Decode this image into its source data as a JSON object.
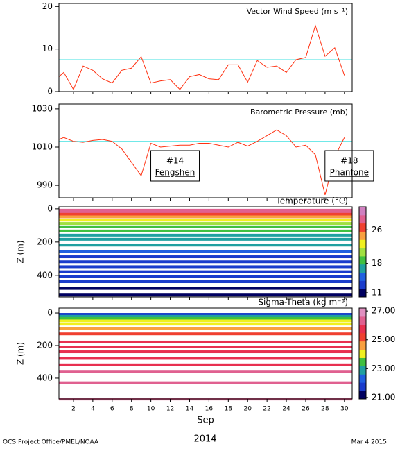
{
  "chart_data": [
    {
      "type": "line",
      "title": "Vector Wind Speed (m s⁻¹)",
      "x": [
        0.5,
        1,
        2,
        3,
        4,
        5,
        6,
        7,
        8,
        9,
        10,
        11,
        12,
        13,
        14,
        15,
        16,
        17,
        18,
        19,
        20,
        21,
        22,
        23,
        24,
        25,
        26,
        27,
        28,
        29,
        30
      ],
      "series": [
        {
          "color": "#ff3010",
          "values": [
            3.5,
            4.5,
            0.5,
            6,
            5,
            3,
            2,
            5,
            5.5,
            8.2,
            2,
            2.5,
            2.8,
            0.5,
            3.5,
            4,
            3,
            2.8,
            6.3,
            6.3,
            2.2,
            7.3,
            5.7,
            6,
            4.5,
            7.5,
            8,
            15.5,
            8.3,
            10.3,
            3.8
          ]
        }
      ],
      "reference_line": {
        "value": 7.5,
        "color": "#40e0e0"
      },
      "xlim": [
        0.5,
        30.8
      ],
      "xticks": [
        2,
        4,
        6,
        8,
        10,
        12,
        14,
        16,
        18,
        20,
        22,
        24,
        26,
        28,
        30
      ],
      "ylim": [
        0,
        20.7
      ],
      "yticks": [
        0,
        10,
        20
      ]
    },
    {
      "type": "line",
      "title": "Barometric Pressure (mb)",
      "x": [
        0.5,
        1,
        2,
        3,
        4,
        5,
        6,
        7,
        8,
        9,
        10,
        11,
        12,
        13,
        14,
        15,
        16,
        17,
        18,
        19,
        20,
        21,
        22,
        23,
        24,
        25,
        26,
        27,
        28,
        29,
        30
      ],
      "series": [
        {
          "color": "#ff3010",
          "values": [
            1014,
            1015,
            1013,
            1012.5,
            1013.5,
            1014,
            1013,
            1009,
            1002,
            995,
            1012,
            1010,
            1010.5,
            1011,
            1011,
            1012,
            1012,
            1011,
            1010,
            1012.5,
            1010.5,
            1013,
            1016,
            1019,
            1016,
            1010,
            1011,
            1006,
            985,
            1005,
            1015
          ]
        }
      ],
      "reference_line": {
        "value": 1013,
        "color": "#40e0e0"
      },
      "annotations": [
        {
          "line1": "#14",
          "line2": "Fengshen",
          "x": 12.5
        },
        {
          "line1": "#18",
          "line2": "Phanfone",
          "x": 30.5
        }
      ],
      "xlim": [
        0.5,
        30.8
      ],
      "xticks": [
        2,
        4,
        6,
        8,
        10,
        12,
        14,
        16,
        18,
        20,
        22,
        24,
        26,
        28,
        30
      ],
      "ylim": [
        983.5,
        1032.5
      ],
      "yticks": [
        990,
        1010,
        1030
      ]
    },
    {
      "type": "heatmap",
      "title": "Temperature (°C)",
      "ylabel": "Z (m)",
      "z_levels": [
        0,
        12,
        25,
        40,
        60,
        80,
        100,
        125,
        150,
        175,
        210,
        250,
        280,
        310,
        340,
        370,
        400,
        430,
        470,
        510
      ],
      "values": [
        29,
        28,
        26,
        25,
        22,
        20,
        19,
        18,
        17,
        16,
        16,
        14,
        13.5,
        13,
        13,
        12.5,
        12,
        12,
        11.5,
        11
      ],
      "xlim": [
        0.5,
        30.8
      ],
      "xticks": [
        2,
        4,
        6,
        8,
        10,
        12,
        14,
        16,
        18,
        20,
        22,
        24,
        26,
        28,
        30
      ],
      "ylim": [
        530,
        -12
      ],
      "yticks": [
        0,
        200,
        400
      ],
      "colorbar": {
        "lim": [
          10,
          31.5
        ],
        "ticks": [
          11,
          18,
          26
        ],
        "colors": [
          "#000060",
          "#1a3ccc",
          "#2060e0",
          "#20a0a0",
          "#40c040",
          "#a0e040",
          "#f0f020",
          "#f8a040",
          "#f04030",
          "#e06090",
          "#d080c0"
        ]
      }
    },
    {
      "type": "heatmap",
      "title": "Sigma-Theta (kg m⁻³)",
      "ylabel": "Z (m)",
      "xlabel": "Sep",
      "z_levels": [
        0,
        12,
        25,
        40,
        60,
        85,
        120,
        170,
        200,
        230,
        270,
        310,
        350,
        420,
        520
      ],
      "values": [
        21.8,
        22.8,
        23.3,
        23.8,
        24.2,
        24.5,
        25.1,
        25.6,
        25.7,
        25.8,
        25.9,
        26.0,
        26.1,
        26.3,
        26.6
      ],
      "xlim": [
        0.5,
        30.8
      ],
      "xticks": [
        2,
        4,
        6,
        8,
        10,
        12,
        14,
        16,
        18,
        20,
        22,
        24,
        26,
        28,
        30
      ],
      "ylim": [
        528,
        -30
      ],
      "yticks": [
        0,
        200,
        400
      ],
      "colorbar": {
        "lim": [
          20.9,
          27.2
        ],
        "ticks": [
          {
            "value": 21,
            "label": "21.00"
          },
          {
            "value": 23,
            "label": "23.00"
          },
          {
            "value": 25,
            "label": "25.00"
          },
          {
            "value": 27,
            "label": "27.00"
          }
        ],
        "colors": [
          "#000060",
          "#1a3ccc",
          "#2060e0",
          "#20a0a0",
          "#40c040",
          "#f0f020",
          "#f8a040",
          "#f04030",
          "#e83050",
          "#e06090",
          "#e090c0"
        ]
      }
    }
  ],
  "footer": {
    "left": "OCS Project Office/PMEL/NOAA",
    "center": "2014",
    "right": "Mar  4 2015"
  }
}
